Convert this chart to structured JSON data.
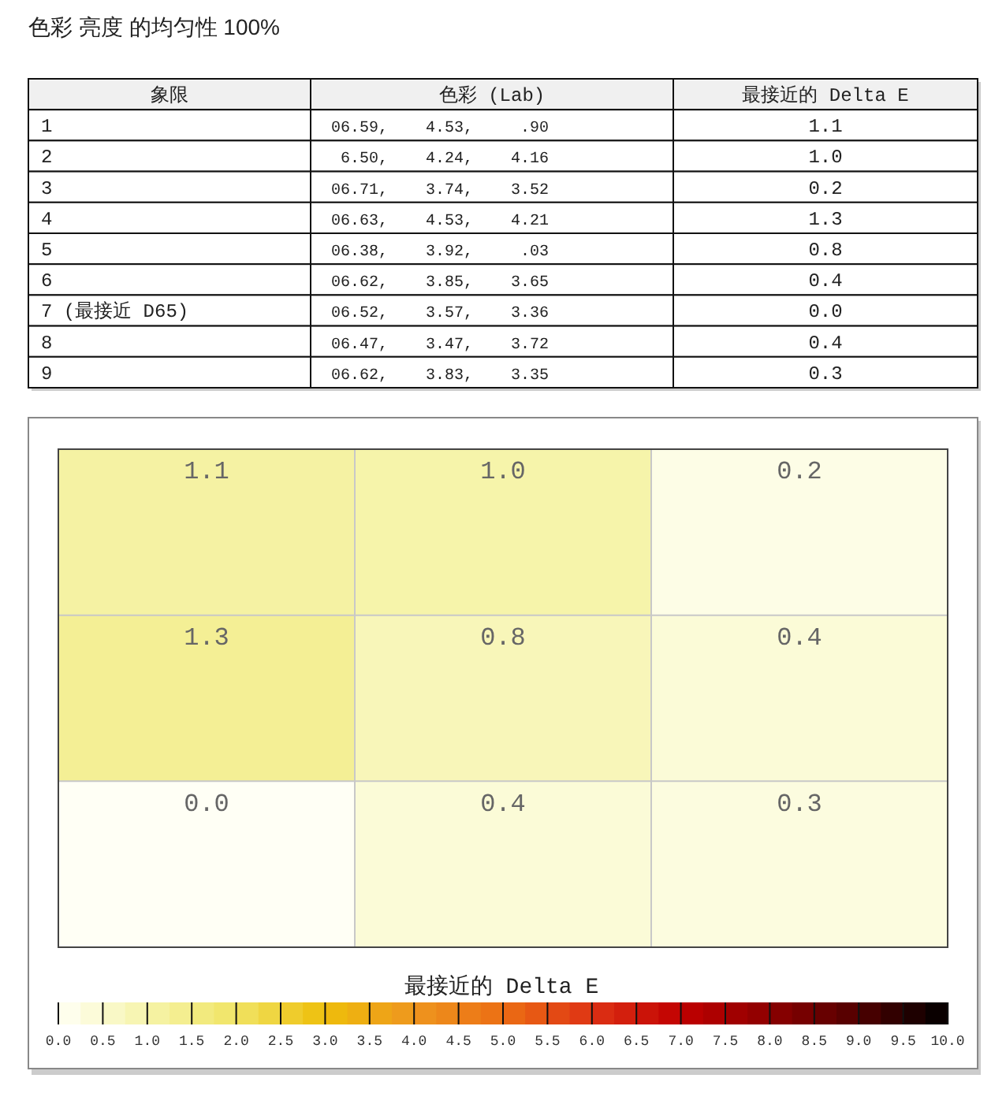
{
  "chart_data": [
    {
      "type": "other",
      "title": "色彩 亮度 的均匀性 100%",
      "annotations": [
        "象限",
        "色彩 (Lab)",
        "最接近的 Delta E",
        "1",
        "06.59,    4.53,     .90",
        "1.1",
        "2",
        "6.50,    4.24,    4.16",
        "1.0",
        "3",
        "06.71,    3.74,    3.52",
        "0.2",
        "4",
        "06.63,    4.53,    4.21",
        "1.3",
        "5",
        "06.38,    3.92,     .03",
        "0.8",
        "6",
        "06.62,    3.85,    3.65",
        "0.4",
        "7 (最接近 D65)",
        "06.52,    3.57,    3.36",
        "0.0",
        "8",
        "06.47,    3.47,    3.72",
        "0.4",
        "9",
        "06.62,    3.83,    3.35",
        "0.3"
      ]
    },
    {
      "type": "heatmap",
      "categories": [
        null,
        null,
        null
      ],
      "y_categories": [
        null,
        null,
        null
      ],
      "cells": [
        [
          1.1,
          1.0,
          0.2
        ],
        [
          1.3,
          0.8,
          0.4
        ],
        [
          0.0,
          0.4,
          0.3
        ]
      ],
      "clabel": "最接近的 Delta E",
      "clim": [
        0,
        10
      ],
      "cticks": [
        {
          "value": 0,
          "label": "0.0"
        },
        {
          "value": 0.5,
          "label": "0.5"
        },
        {
          "value": 1,
          "label": "1.0"
        },
        {
          "value": 1.5,
          "label": "1.5"
        },
        {
          "value": 2,
          "label": "2.0"
        },
        {
          "value": 2.5,
          "label": "2.5"
        },
        {
          "value": 3,
          "label": "3.0"
        },
        {
          "value": 3.5,
          "label": "3.5"
        },
        {
          "value": 4,
          "label": "4.0"
        },
        {
          "value": 4.5,
          "label": "4.5"
        },
        {
          "value": 5,
          "label": "5.0"
        },
        {
          "value": 5.5,
          "label": "5.5"
        },
        {
          "value": 6,
          "label": "6.0"
        },
        {
          "value": 6.5,
          "label": "6.5"
        },
        {
          "value": 7,
          "label": "7.0"
        },
        {
          "value": 7.5,
          "label": "7.5"
        },
        {
          "value": 8,
          "label": "8.0"
        },
        {
          "value": 8.5,
          "label": "8.5"
        },
        {
          "value": 9,
          "label": "9.0"
        },
        {
          "value": 9.5,
          "label": "9.5"
        },
        {
          "value": 10,
          "label": "10.0"
        }
      ],
      "grid": true
    }
  ]
}
